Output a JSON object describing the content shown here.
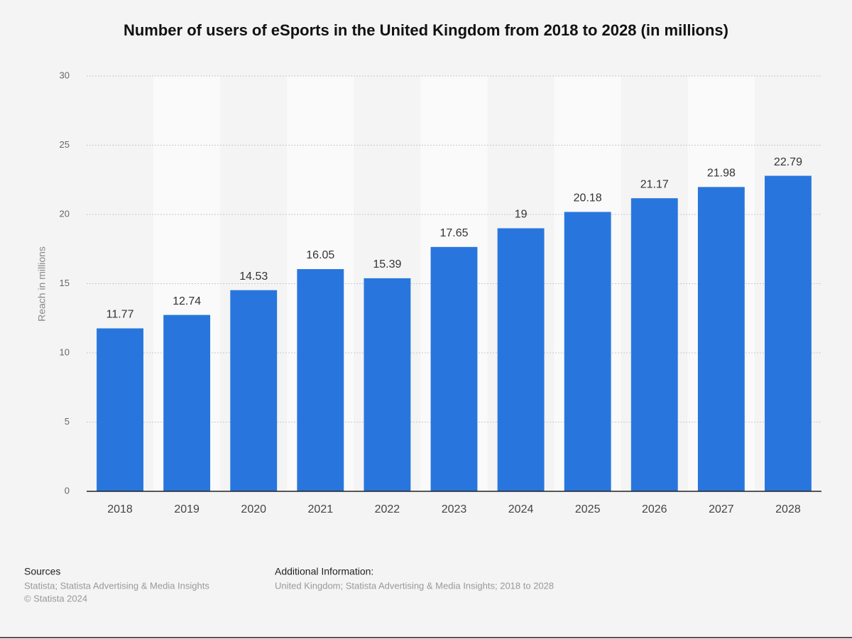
{
  "chart_data": {
    "type": "bar",
    "title": "Number of users of eSports in the United Kingdom from 2018 to 2028 (in millions)",
    "y_label": "Reach in millions",
    "categories": [
      "2018",
      "2019",
      "2020",
      "2021",
      "2022",
      "2023",
      "2024",
      "2025",
      "2026",
      "2027",
      "2028"
    ],
    "values": [
      11.77,
      12.74,
      14.53,
      16.05,
      15.39,
      17.65,
      19,
      20.18,
      21.17,
      21.98,
      22.79
    ],
    "color": "#2876dd",
    "ylim": [
      0,
      30
    ],
    "yticks": [
      0,
      5,
      10,
      15,
      20,
      25,
      30
    ],
    "grid": true
  },
  "footer": {
    "sources_title": "Sources",
    "sources": "Statista; Statista Advertising & Media Insights",
    "copyright": "© Statista 2024",
    "info_title": "Additional Information:",
    "info": "United Kingdom; Statista Advertising & Media Insights; 2018 to 2028"
  }
}
